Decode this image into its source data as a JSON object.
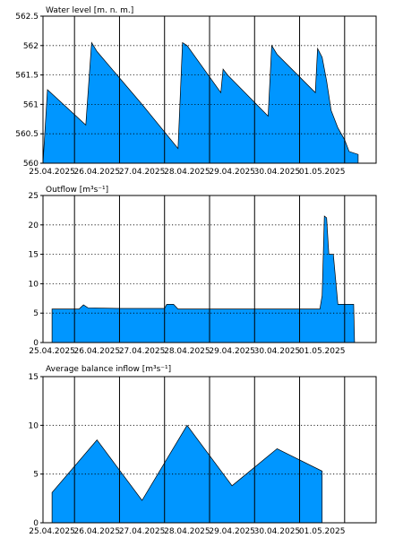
{
  "chart_data": [
    {
      "type": "area",
      "title": "Water level [m. n. m.]",
      "xlabel": "",
      "ylabel": "",
      "x_ticks": [
        "25.04.2025",
        "26.04.2025",
        "27.04.2025",
        "28.04.2025",
        "29.04.2025",
        "30.04.2025",
        "01.05.2025"
      ],
      "x_range": [
        24.8,
        32.2
      ],
      "ylim": [
        560,
        562.5
      ],
      "y_ticks": [
        "560",
        "560.5",
        "561",
        "561.5",
        "562",
        "562.5"
      ],
      "y_tick_values": [
        560,
        560.5,
        561,
        561.5,
        562,
        562.5
      ],
      "grid": true,
      "fill_color": "#0096ff",
      "series": [
        {
          "x": [
            24.8,
            24.9,
            25.75,
            25.88,
            26.0,
            27.0,
            27.8,
            27.9,
            28.0,
            28.75,
            28.8,
            28.9,
            29.8,
            29.88,
            30.0,
            30.85,
            30.9,
            31.0,
            31.1,
            31.2,
            31.35,
            31.5,
            31.6,
            31.8
          ],
          "values": [
            560.0,
            561.25,
            560.65,
            562.05,
            561.9,
            561.0,
            560.25,
            562.05,
            562.0,
            561.2,
            561.6,
            561.5,
            560.8,
            562.0,
            561.85,
            561.2,
            561.95,
            561.8,
            561.4,
            560.9,
            560.6,
            560.4,
            560.2,
            560.15
          ]
        }
      ]
    },
    {
      "type": "area",
      "title": "Outflow [m³s⁻¹]",
      "xlabel": "",
      "ylabel": "",
      "x_ticks": [
        "25.04.2025",
        "26.04.2025",
        "27.04.2025",
        "28.04.2025",
        "29.04.2025",
        "30.04.2025",
        "01.05.2025"
      ],
      "x_range": [
        24.8,
        32.2
      ],
      "ylim": [
        0,
        25
      ],
      "y_ticks": [
        "0",
        "5",
        "10",
        "15",
        "20",
        "25"
      ],
      "y_tick_values": [
        0,
        5,
        10,
        15,
        20,
        25
      ],
      "grid": true,
      "fill_color": "#0096ff",
      "series": [
        {
          "x": [
            25.0,
            25.6,
            25.7,
            25.8,
            26.5,
            27.5,
            27.55,
            27.7,
            27.8,
            30.95,
            31.0,
            31.05,
            31.1,
            31.15,
            31.2,
            31.25,
            31.35,
            31.4,
            31.7,
            31.72
          ],
          "values": [
            5.7,
            5.7,
            6.4,
            5.9,
            5.8,
            5.8,
            6.5,
            6.5,
            5.7,
            5.7,
            8.0,
            21.5,
            21.2,
            15.0,
            15.0,
            15.0,
            6.5,
            6.5,
            6.5,
            0
          ]
        }
      ]
    },
    {
      "type": "area",
      "title": "Average balance inflow  [m³s⁻¹]",
      "xlabel": "",
      "ylabel": "",
      "x_ticks": [
        "25.04.2025",
        "26.04.2025",
        "27.04.2025",
        "28.04.2025",
        "29.04.2025",
        "30.04.2025",
        "01.05.2025"
      ],
      "x_range": [
        24.8,
        32.2
      ],
      "ylim": [
        0,
        15
      ],
      "y_ticks": [
        "0",
        "5",
        "10",
        "15"
      ],
      "y_tick_values": [
        0,
        5,
        10,
        15
      ],
      "grid": true,
      "fill_color": "#0096ff",
      "series": [
        {
          "x": [
            25.0,
            26.0,
            27.0,
            28.0,
            29.0,
            30.0,
            31.0
          ],
          "values": [
            3.1,
            8.5,
            2.3,
            10.0,
            3.8,
            7.6,
            5.3
          ]
        }
      ]
    }
  ]
}
